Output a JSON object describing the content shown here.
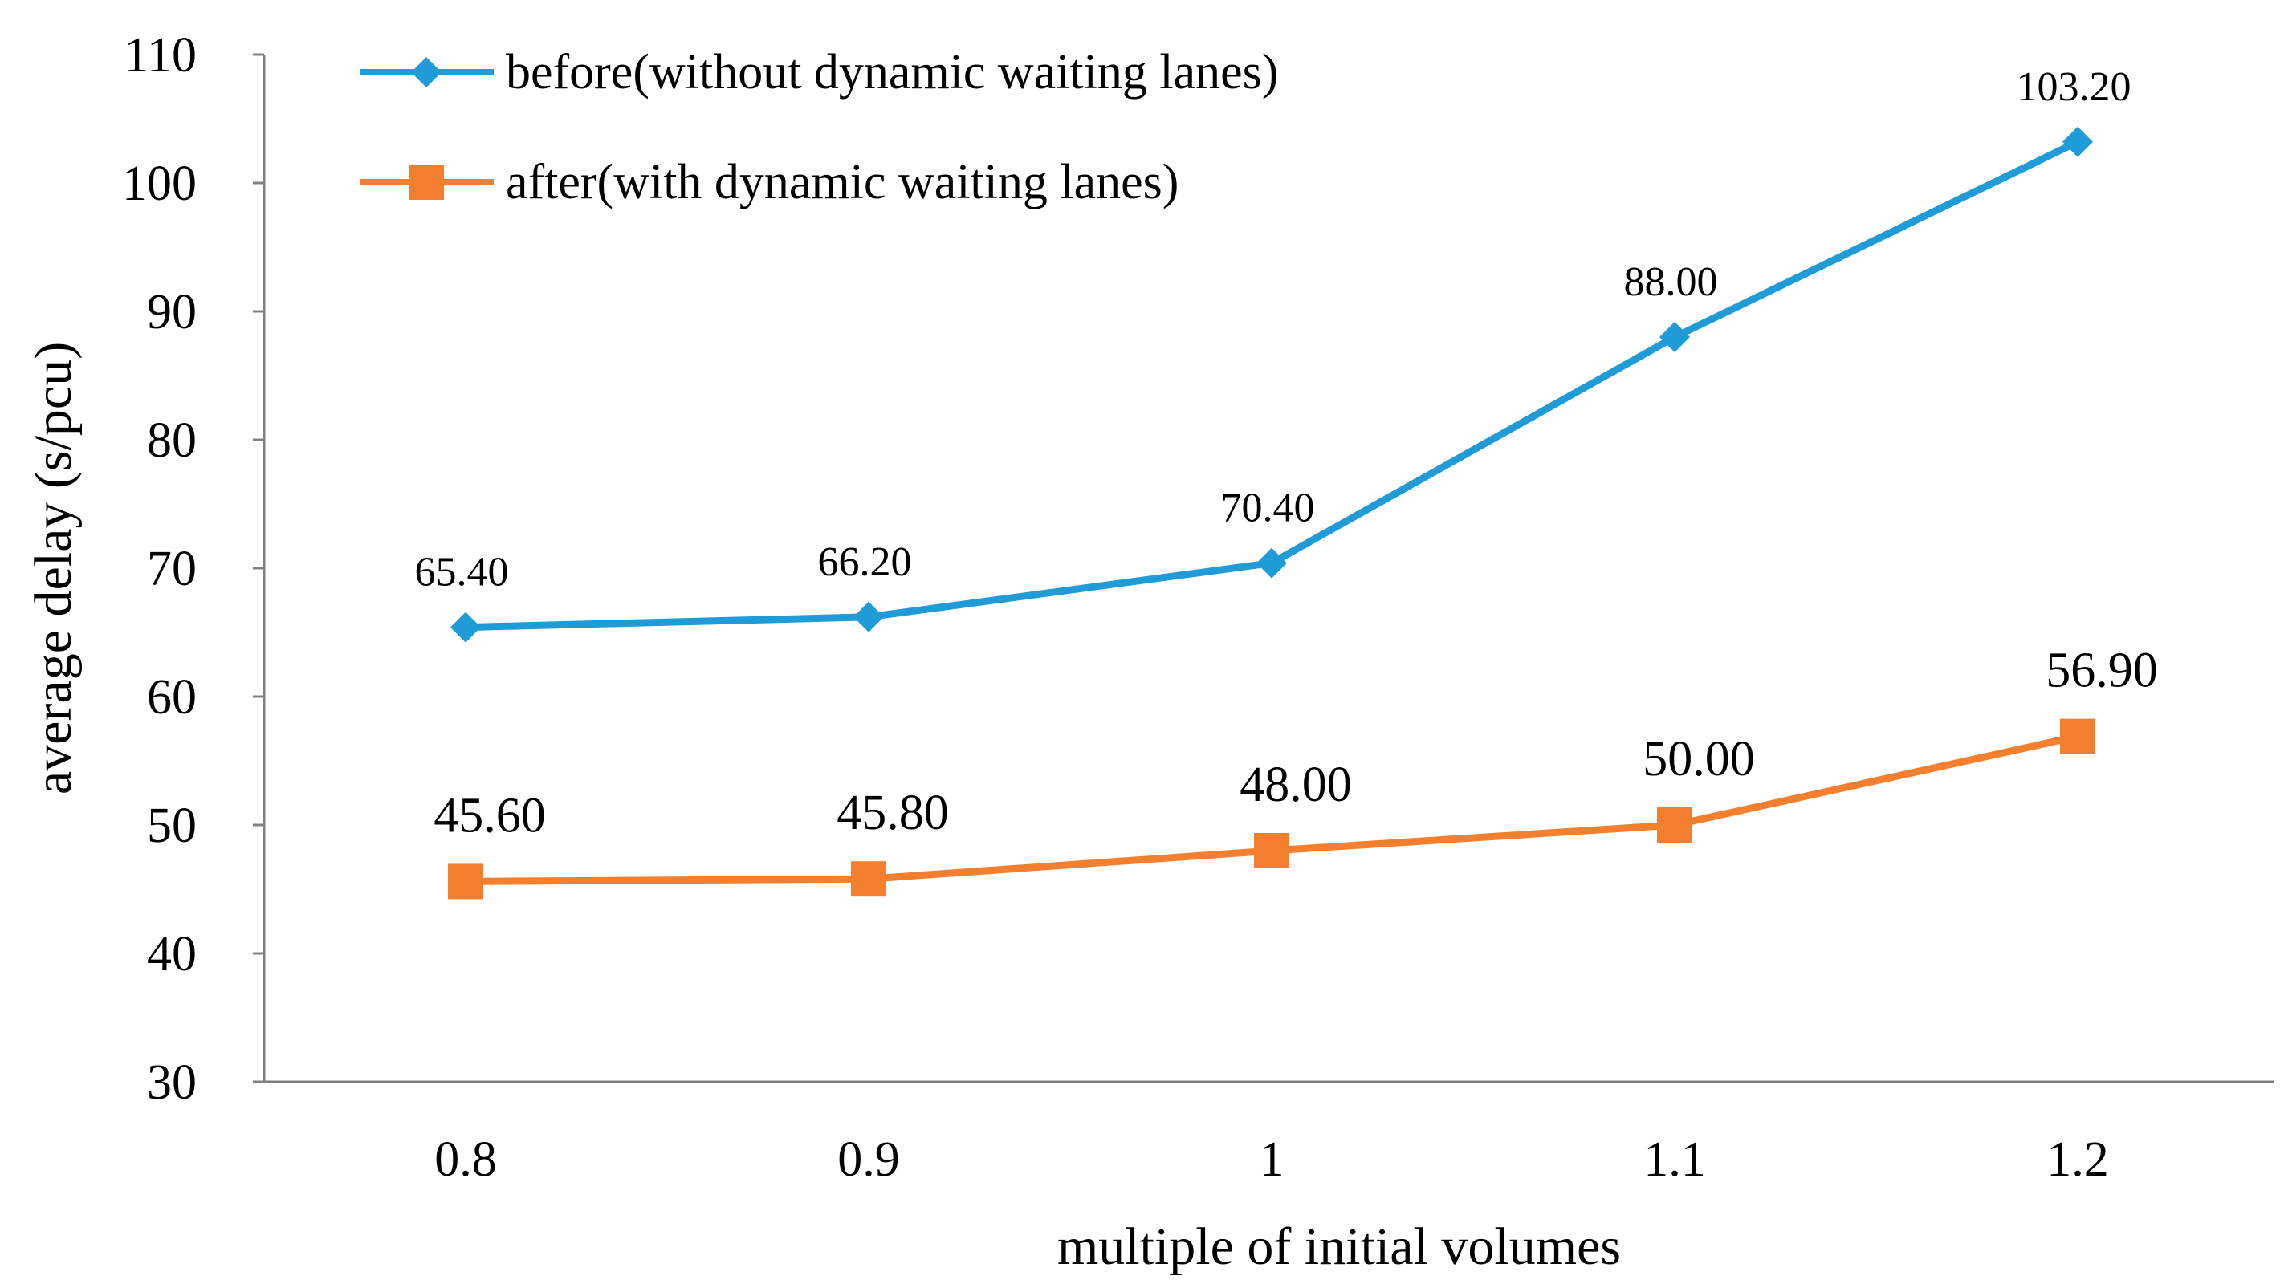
{
  "chart_data": {
    "type": "line",
    "title": "",
    "xlabel": "multiple of initial volumes",
    "ylabel": "average delay (s/pcu)",
    "categories": [
      "0.8",
      "0.9",
      "1",
      "1.1",
      "1.2"
    ],
    "ylim": [
      30,
      110
    ],
    "yticks": [
      30,
      40,
      50,
      60,
      70,
      80,
      90,
      100,
      110
    ],
    "grid": false,
    "legend_position": "top-left",
    "series": [
      {
        "name": "before(without dynamic waiting lanes)",
        "marker": "diamond",
        "color": "#1f9bd7",
        "values": [
          65.4,
          66.2,
          70.4,
          88.0,
          103.2
        ],
        "labels": [
          "65.40",
          "66.20",
          "70.40",
          "88.00",
          "103.20"
        ]
      },
      {
        "name": "after(with dynamic waiting lanes)",
        "marker": "square",
        "color": "#f47f2e",
        "values": [
          45.6,
          45.8,
          48.0,
          50.0,
          56.9
        ],
        "labels": [
          "45.60",
          "45.80",
          "48.00",
          "50.00",
          "56.90"
        ]
      }
    ]
  }
}
